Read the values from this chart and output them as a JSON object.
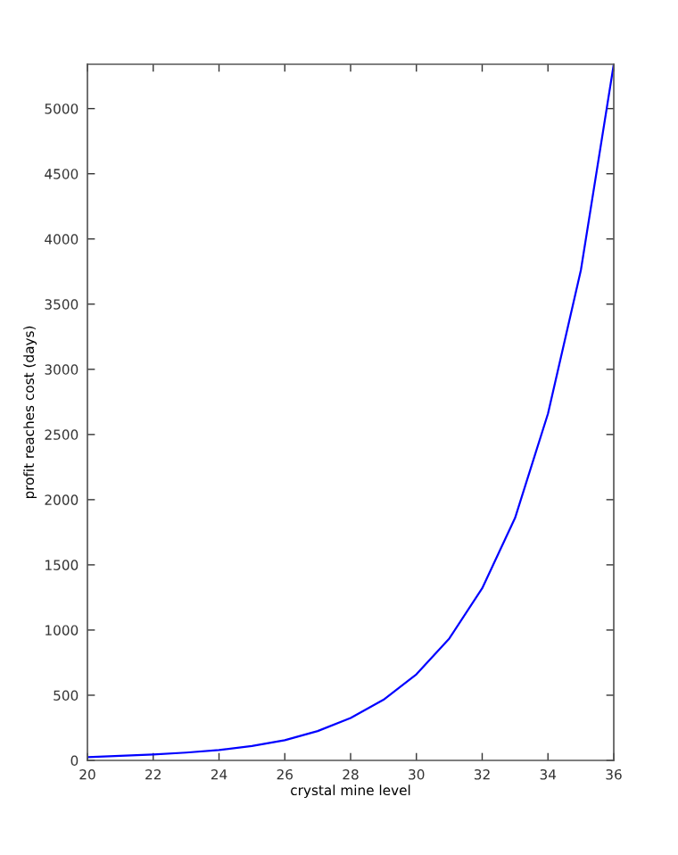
{
  "chart_data": {
    "type": "line",
    "xlabel": "crystal mine level",
    "ylabel": "profit reaches cost (days)",
    "x": [
      20,
      21,
      22,
      23,
      24,
      25,
      26,
      27,
      28,
      29,
      30,
      31,
      32,
      33,
      34,
      35,
      36
    ],
    "series": [
      {
        "color": "#0000ff",
        "values": [
          25,
          35,
          45,
          60,
          80,
          110,
          155,
          225,
          325,
          465,
          660,
          935,
          1320,
          1860,
          2660,
          3760,
          5340
        ]
      }
    ],
    "xlim": [
      20,
      36
    ],
    "xticks": [
      20,
      22,
      24,
      26,
      28,
      30,
      32,
      34,
      36
    ],
    "ylim": [
      0,
      5340
    ],
    "yticks": [
      0,
      500,
      1000,
      1500,
      2000,
      2500,
      3000,
      3500,
      4000,
      4500,
      5000
    ],
    "grid": false,
    "legend": false
  }
}
